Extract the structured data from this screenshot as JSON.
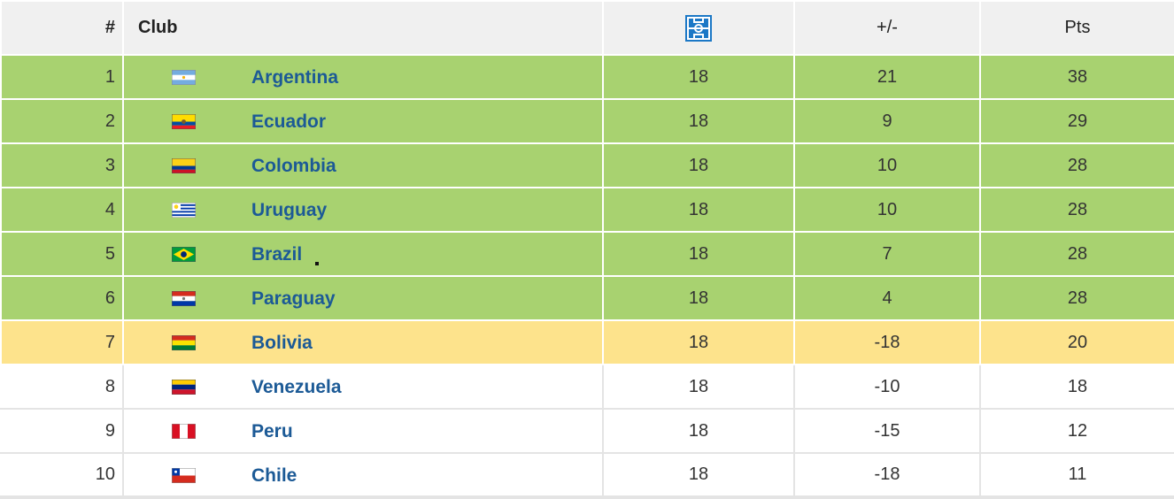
{
  "header": {
    "position": "#",
    "club": "Club",
    "played_icon": "football-pitch-icon",
    "goal_diff": "+/-",
    "points": "Pts"
  },
  "colors": {
    "qualified": "#a8d270",
    "playoff": "#fde38c",
    "link": "#1c5a96",
    "header_bg": "#f0f0f0",
    "icon": "#1c78c6"
  },
  "rows": [
    {
      "pos": "1",
      "club": "Argentina",
      "flag": "argentina-flag",
      "played": "18",
      "gd": "21",
      "pts": "38"
    },
    {
      "pos": "2",
      "club": "Ecuador",
      "flag": "ecuador-flag",
      "played": "18",
      "gd": "9",
      "pts": "29"
    },
    {
      "pos": "3",
      "club": "Colombia",
      "flag": "colombia-flag",
      "played": "18",
      "gd": "10",
      "pts": "28"
    },
    {
      "pos": "4",
      "club": "Uruguay",
      "flag": "uruguay-flag",
      "played": "18",
      "gd": "10",
      "pts": "28"
    },
    {
      "pos": "5",
      "club": "Brazil",
      "flag": "brazil-flag",
      "played": "18",
      "gd": "7",
      "pts": "28"
    },
    {
      "pos": "6",
      "club": "Paraguay",
      "flag": "paraguay-flag",
      "played": "18",
      "gd": "4",
      "pts": "28"
    },
    {
      "pos": "7",
      "club": "Bolivia",
      "flag": "bolivia-flag",
      "played": "18",
      "gd": "-18",
      "pts": "20"
    },
    {
      "pos": "8",
      "club": "Venezuela",
      "flag": "venezuela-flag",
      "played": "18",
      "gd": "-10",
      "pts": "18"
    },
    {
      "pos": "9",
      "club": "Peru",
      "flag": "peru-flag",
      "played": "18",
      "gd": "-15",
      "pts": "12"
    },
    {
      "pos": "10",
      "club": "Chile",
      "flag": "chile-flag",
      "played": "18",
      "gd": "-18",
      "pts": "11"
    }
  ]
}
